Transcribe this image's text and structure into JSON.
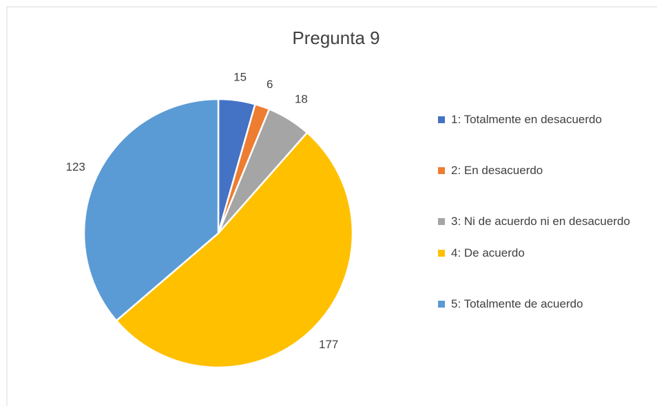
{
  "chart_data": {
    "type": "pie",
    "title": "Pregunta 9",
    "categories": [
      "1: Totalmente en desacuerdo",
      "2: En desacuerdo",
      "3: Ni de acuerdo ni en desacuerdo",
      "4: De acuerdo",
      "5: Totalmente de acuerdo"
    ],
    "values": [
      15,
      6,
      18,
      177,
      123
    ],
    "colors": [
      "#4472c4",
      "#ed7d31",
      "#a5a5a5",
      "#ffc000",
      "#5b9bd5"
    ],
    "legend": "right"
  }
}
